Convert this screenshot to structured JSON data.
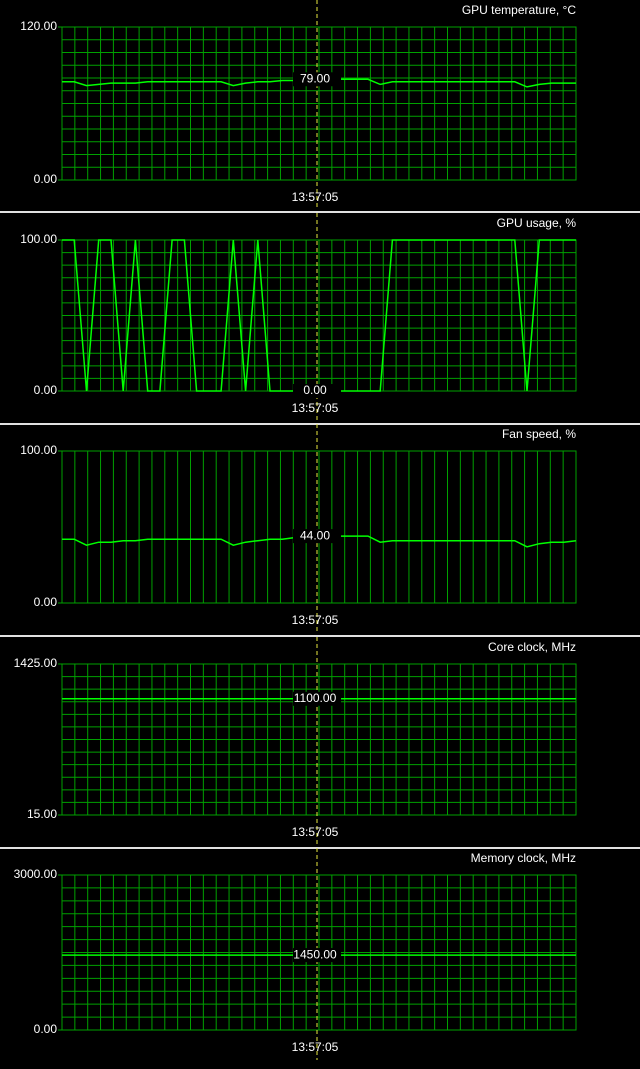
{
  "chart_data": [
    {
      "type": "line",
      "title": "GPU temperature, °C",
      "color": "#00ff00",
      "grid": "both",
      "ylim": [
        0,
        120
      ],
      "yticks": [
        {
          "value": 0,
          "label": "0.00"
        },
        {
          "value": 120,
          "label": "120.00"
        }
      ],
      "values": [
        77,
        77,
        74,
        75,
        76,
        76,
        76,
        77,
        77,
        77,
        77,
        77,
        77,
        77,
        74,
        76,
        77,
        77,
        78,
        78,
        79,
        79,
        79,
        79,
        79,
        79,
        75,
        77,
        77,
        77,
        77,
        77,
        77,
        77,
        77,
        77,
        77,
        77,
        73,
        75,
        76,
        76,
        76
      ],
      "cursor_value": 79,
      "cursor_value_label": "79.00",
      "cursor_time": "13:57:05"
    },
    {
      "type": "line",
      "title": "GPU usage, %",
      "color": "#00ff00",
      "grid": "both",
      "ylim": [
        0,
        100
      ],
      "yticks": [
        {
          "value": 0,
          "label": "0.00"
        },
        {
          "value": 100,
          "label": "100.00"
        }
      ],
      "values": [
        100,
        100,
        0,
        100,
        100,
        0,
        100,
        0,
        0,
        100,
        100,
        0,
        0,
        0,
        100,
        0,
        100,
        0,
        0,
        0,
        0,
        0,
        0,
        0,
        0,
        0,
        0,
        100,
        100,
        100,
        100,
        100,
        100,
        100,
        100,
        100,
        100,
        100,
        0,
        100,
        100,
        100,
        100
      ],
      "cursor_value": 0,
      "cursor_value_label": "0.00",
      "cursor_time": "13:57:05"
    },
    {
      "type": "line",
      "title": "Fan speed, %",
      "color": "#00ff00",
      "grid": "vertical",
      "ylim": [
        0,
        100
      ],
      "yticks": [
        {
          "value": 0,
          "label": "0.00"
        },
        {
          "value": 100,
          "label": "100.00"
        }
      ],
      "values": [
        42,
        42,
        38,
        40,
        40,
        41,
        41,
        42,
        42,
        42,
        42,
        42,
        42,
        42,
        38,
        40,
        41,
        42,
        42,
        43,
        43,
        44,
        44,
        44,
        44,
        44,
        40,
        41,
        41,
        41,
        41,
        41,
        41,
        41,
        41,
        41,
        41,
        41,
        37,
        39,
        40,
        40,
        41
      ],
      "cursor_value": 44,
      "cursor_value_label": "44.00",
      "cursor_time": "13:57:05"
    },
    {
      "type": "line",
      "title": "Core clock, MHz",
      "color": "#00ff00",
      "grid": "both",
      "ylim": [
        15,
        1425
      ],
      "yticks": [
        {
          "value": 15,
          "label": "15.00"
        },
        {
          "value": 1425,
          "label": "1425.00"
        }
      ],
      "values": [
        1100,
        1100,
        1100,
        1100,
        1100,
        1100,
        1100,
        1100,
        1100,
        1100,
        1100,
        1100,
        1100,
        1100,
        1100,
        1100,
        1100,
        1100,
        1100,
        1100,
        1100,
        1100,
        1100,
        1100,
        1100,
        1100,
        1100,
        1100,
        1100,
        1100,
        1100,
        1100,
        1100,
        1100,
        1100,
        1100,
        1100,
        1100,
        1100,
        1100,
        1100,
        1100,
        1100
      ],
      "cursor_value": 1100,
      "cursor_value_label": "1100.00",
      "cursor_time": "13:57:05"
    },
    {
      "type": "line",
      "title": "Memory clock, MHz",
      "color": "#00ff00",
      "grid": "both",
      "ylim": [
        0,
        3000
      ],
      "yticks": [
        {
          "value": 0,
          "label": "0.00"
        },
        {
          "value": 3000,
          "label": "3000.00"
        }
      ],
      "values": [
        1450,
        1450,
        1450,
        1450,
        1450,
        1450,
        1450,
        1450,
        1450,
        1450,
        1450,
        1450,
        1450,
        1450,
        1450,
        1450,
        1450,
        1450,
        1450,
        1450,
        1450,
        1450,
        1450,
        1450,
        1450,
        1450,
        1450,
        1450,
        1450,
        1450,
        1450,
        1450,
        1450,
        1450,
        1450,
        1450,
        1450,
        1450,
        1450,
        1450,
        1450,
        1450,
        1450
      ],
      "cursor_value": 1450,
      "cursor_value_label": "1450.00",
      "cursor_time": "13:57:05"
    }
  ]
}
